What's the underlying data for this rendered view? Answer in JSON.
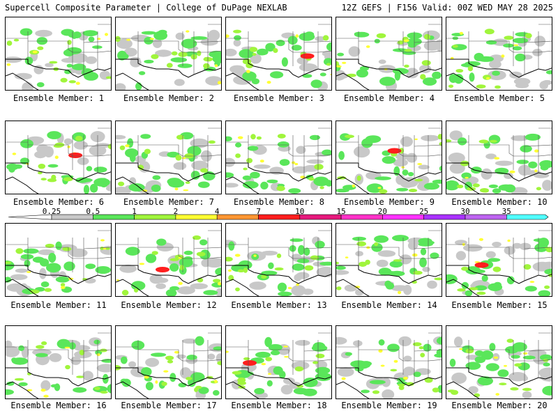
{
  "header": {
    "left": "Supercell Composite Parameter | College of DuPage NEXLAB",
    "right": "12Z GEFS | F156 Valid: 00Z WED MAY 28 2025"
  },
  "label_prefix": "Ensemble Member: ",
  "members": [
    1,
    2,
    3,
    4,
    5,
    6,
    7,
    8,
    9,
    10,
    11,
    12,
    13,
    14,
    15,
    16,
    17,
    18,
    19,
    20
  ],
  "colorbar": {
    "ticks": [
      "0.25",
      "0.5",
      "1",
      "2",
      "4",
      "7",
      "10",
      "15",
      "20",
      "25",
      "30",
      "35"
    ],
    "colors": [
      "#c8c8c8",
      "#5ae65a",
      "#a0f53c",
      "#ffff32",
      "#ff9632",
      "#ff1e1e",
      "#e6197d",
      "#ff32c8",
      "#ff32ff",
      "#aa32ff",
      "#be64f0",
      "#50ffff"
    ]
  },
  "field_colors": {
    "gray": "#c8c8c8",
    "green": "#5ae65a",
    "lime": "#a0f53c",
    "yellow": "#ffff32",
    "orange": "#ff9632",
    "red": "#ff1e1e"
  }
}
